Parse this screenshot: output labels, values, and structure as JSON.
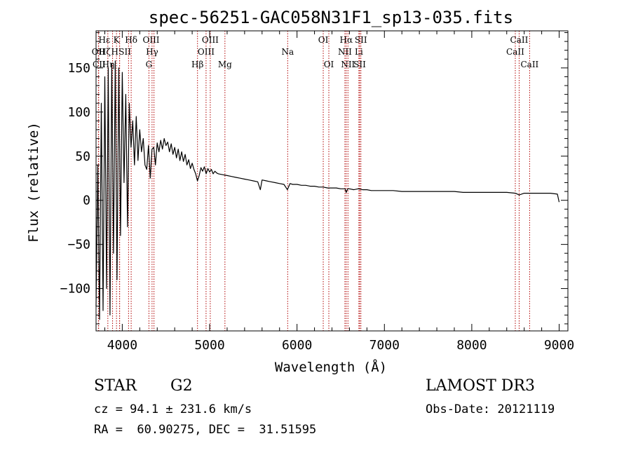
{
  "chart_data": {
    "type": "line",
    "title": "spec-56251-GAC058N31F1_sp13-035.fits",
    "xlabel": "Wavelength (Å)",
    "ylabel": "Flux (relative)",
    "xlim": [
      3700,
      9100
    ],
    "ylim": [
      -148,
      192
    ],
    "xticks": [
      4000,
      5000,
      6000,
      7000,
      8000,
      9000
    ],
    "yticks": [
      -100,
      -50,
      0,
      50,
      100,
      150
    ],
    "xtick_labels": [
      "4000",
      "5000",
      "6000",
      "7000",
      "8000",
      "9000"
    ],
    "ytick_labels": [
      "−100",
      "−50",
      "0",
      "50",
      "100",
      "150"
    ],
    "series": [
      {
        "name": "flux",
        "x": [
          3700,
          3720,
          3740,
          3760,
          3780,
          3800,
          3820,
          3840,
          3860,
          3880,
          3900,
          3920,
          3940,
          3960,
          3980,
          4000,
          4020,
          4040,
          4060,
          4080,
          4100,
          4120,
          4140,
          4160,
          4180,
          4200,
          4220,
          4240,
          4260,
          4280,
          4300,
          4320,
          4340,
          4360,
          4380,
          4400,
          4420,
          4440,
          4460,
          4480,
          4500,
          4520,
          4540,
          4560,
          4580,
          4600,
          4620,
          4640,
          4660,
          4680,
          4700,
          4720,
          4740,
          4760,
          4780,
          4800,
          4820,
          4840,
          4860,
          4880,
          4900,
          4920,
          4940,
          4960,
          4980,
          5000,
          5020,
          5040,
          5060,
          5080,
          5100,
          5150,
          5200,
          5250,
          5300,
          5350,
          5400,
          5450,
          5500,
          5550,
          5580,
          5600,
          5650,
          5700,
          5750,
          5800,
          5850,
          5890,
          5920,
          5950,
          6000,
          6050,
          6100,
          6150,
          6200,
          6250,
          6300,
          6350,
          6400,
          6450,
          6500,
          6550,
          6563,
          6580,
          6600,
          6650,
          6700,
          6750,
          6800,
          6850,
          6900,
          6950,
          7000,
          7050,
          7100,
          7200,
          7300,
          7400,
          7500,
          7600,
          7700,
          7800,
          7900,
          8000,
          8100,
          8200,
          8300,
          8400,
          8500,
          8542,
          8600,
          8700,
          8800,
          8900,
          8980,
          9000
        ],
        "values": [
          -120,
          40,
          -135,
          110,
          -125,
          140,
          -100,
          150,
          -130,
          155,
          -60,
          158,
          -90,
          150,
          -40,
          145,
          20,
          120,
          -30,
          110,
          60,
          90,
          40,
          95,
          45,
          80,
          55,
          70,
          40,
          35,
          62,
          25,
          58,
          60,
          40,
          65,
          55,
          68,
          58,
          70,
          62,
          66,
          55,
          64,
          52,
          60,
          48,
          58,
          45,
          55,
          44,
          52,
          40,
          46,
          36,
          42,
          35,
          30,
          22,
          28,
          37,
          33,
          38,
          30,
          36,
          32,
          35,
          30,
          33,
          31,
          30,
          29,
          28,
          27,
          26,
          25,
          24,
          23,
          22,
          21,
          12,
          23,
          22,
          21,
          20,
          19,
          18,
          12,
          19,
          18,
          18,
          17,
          17,
          16,
          16,
          15,
          15,
          14,
          14,
          14,
          13,
          13,
          9,
          13,
          13,
          12,
          13,
          12,
          12,
          11,
          11,
          11,
          11,
          11,
          11,
          10,
          10,
          10,
          10,
          10,
          10,
          10,
          9,
          9,
          9,
          9,
          9,
          9,
          8,
          6,
          8,
          8,
          8,
          8,
          7,
          -2
        ]
      }
    ],
    "lines": [
      {
        "name": "Hε",
        "wl": 3970
      },
      {
        "name": "OII",
        "wl": 3727
      },
      {
        "name": "CII",
        "wl": 3730
      },
      {
        "name": "Hη",
        "wl": 3835
      },
      {
        "name": "Hζ",
        "wl": 3889
      },
      {
        "name": "K",
        "wl": 3934
      },
      {
        "name": "H",
        "wl": 3969
      },
      {
        "name": "SII",
        "wl": 4072
      },
      {
        "name": "Hδ",
        "wl": 4102
      },
      {
        "name": "OIII",
        "wl": 4363
      },
      {
        "name": "Hγ",
        "wl": 4341
      },
      {
        "name": "G",
        "wl": 4305
      },
      {
        "name": "Hβ",
        "wl": 4861
      },
      {
        "name": "OIII",
        "wl": 4959
      },
      {
        "name": "OIII",
        "wl": 5007
      },
      {
        "name": "Mg",
        "wl": 5175
      },
      {
        "name": "Na",
        "wl": 5893
      },
      {
        "name": "OI",
        "wl": 6300
      },
      {
        "name": "OI",
        "wl": 6364
      },
      {
        "name": "NII",
        "wl": 6548
      },
      {
        "name": "Hα",
        "wl": 6563
      },
      {
        "name": "NII",
        "wl": 6583
      },
      {
        "name": "Li",
        "wl": 6708
      },
      {
        "name": "SII",
        "wl": 6717
      },
      {
        "name": "SII",
        "wl": 6731
      },
      {
        "name": "CaII",
        "wl": 8498
      },
      {
        "name": "CaII",
        "wl": 8542
      },
      {
        "name": "CaII",
        "wl": 8662
      }
    ],
    "line_labels": [
      {
        "text": "Hε",
        "wl": 3795,
        "row": 0
      },
      {
        "text": "K",
        "wl": 3934,
        "row": 0
      },
      {
        "text": "Hδ",
        "wl": 4102,
        "row": 0
      },
      {
        "text": "OIII",
        "wl": 4330,
        "row": 0
      },
      {
        "text": "OIII",
        "wl": 5007,
        "row": 0
      },
      {
        "text": "OI",
        "wl": 6300,
        "row": 0
      },
      {
        "text": "Hα",
        "wl": 6563,
        "row": 0
      },
      {
        "text": "SII",
        "wl": 6731,
        "row": 0
      },
      {
        "text": "CaII",
        "wl": 8542,
        "row": 0
      },
      {
        "text": "OII",
        "wl": 3727,
        "row": 1
      },
      {
        "text": "Hζ",
        "wl": 3800,
        "row": 1
      },
      {
        "text": "H",
        "wl": 3915,
        "row": 1
      },
      {
        "text": "SII",
        "wl": 4030,
        "row": 1
      },
      {
        "text": "Hγ",
        "wl": 4341,
        "row": 1
      },
      {
        "text": "OIII",
        "wl": 4959,
        "row": 1
      },
      {
        "text": "Na",
        "wl": 5893,
        "row": 1
      },
      {
        "text": "NII",
        "wl": 6548,
        "row": 1
      },
      {
        "text": "Li",
        "wl": 6708,
        "row": 1
      },
      {
        "text": "CaII",
        "wl": 8498,
        "row": 1
      },
      {
        "text": "CII",
        "wl": 3735,
        "row": 2
      },
      {
        "text": "Hη",
        "wl": 3840,
        "row": 2
      },
      {
        "text": "G",
        "wl": 4305,
        "row": 2
      },
      {
        "text": "Hβ",
        "wl": 4861,
        "row": 2
      },
      {
        "text": "Mg",
        "wl": 5175,
        "row": 2
      },
      {
        "text": "OI",
        "wl": 6364,
        "row": 2
      },
      {
        "text": "NII",
        "wl": 6583,
        "row": 2
      },
      {
        "text": "SII",
        "wl": 6717,
        "row": 2
      },
      {
        "text": "CaII",
        "wl": 8662,
        "row": 2
      }
    ]
  },
  "info": {
    "object_class": "STAR",
    "subclass": "G2",
    "survey": "LAMOST DR3",
    "cz": "cz = 94.1 ± 231.6 km/s",
    "obs_date": "Obs-Date: 20121119",
    "coords": "RA =  60.90275, DEC =  31.51595"
  }
}
